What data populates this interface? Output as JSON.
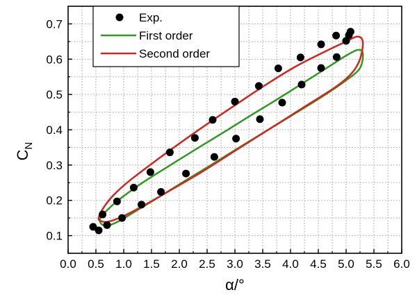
{
  "chart_data": {
    "type": "scatter",
    "title": "",
    "xlabel": "α/°",
    "ylabel_main": "C",
    "ylabel_sub": "N",
    "xlim": [
      0.0,
      6.0
    ],
    "ylim": [
      0.05,
      0.75
    ],
    "x_ticks": [
      "0.0",
      "0.5",
      "1.0",
      "1.5",
      "2.0",
      "2.5",
      "3.0",
      "3.5",
      "4.0",
      "4.5",
      "5.0",
      "5.5",
      "6.0"
    ],
    "y_ticks": [
      "0.1",
      "0.2",
      "0.3",
      "0.4",
      "0.5",
      "0.6",
      "0.7"
    ],
    "grid": true,
    "legend_position": "top-left",
    "series": [
      {
        "name": "Exp.",
        "kind": "points",
        "color": "#000000",
        "x": [
          0.45,
          0.55,
          0.62,
          0.7,
          0.88,
          0.97,
          1.18,
          1.32,
          1.48,
          1.67,
          1.83,
          2.12,
          2.28,
          2.6,
          2.63,
          3.0,
          3.02,
          3.43,
          3.45,
          3.78,
          3.85,
          4.18,
          4.2,
          4.55,
          4.55,
          4.82,
          4.83,
          5.0,
          5.05,
          5.08
        ],
        "y": [
          0.125,
          0.115,
          0.16,
          0.13,
          0.197,
          0.15,
          0.236,
          0.188,
          0.28,
          0.224,
          0.336,
          0.276,
          0.377,
          0.428,
          0.323,
          0.48,
          0.375,
          0.524,
          0.43,
          0.574,
          0.477,
          0.605,
          0.528,
          0.642,
          0.575,
          0.667,
          0.606,
          0.652,
          0.668,
          0.678
        ]
      },
      {
        "name": "First order",
        "kind": "loop",
        "color": "#2e9a1f",
        "x": [
          0.57,
          0.6,
          0.7,
          0.9,
          1.2,
          1.6,
          2.1,
          2.6,
          3.1,
          3.6,
          4.1,
          4.6,
          5.0,
          5.25,
          5.3,
          5.2,
          5.0,
          4.7,
          4.3,
          3.8,
          3.3,
          2.8,
          2.3,
          1.8,
          1.3,
          0.9,
          0.7,
          0.6,
          0.57
        ],
        "y": [
          0.145,
          0.133,
          0.128,
          0.14,
          0.168,
          0.206,
          0.255,
          0.303,
          0.352,
          0.4,
          0.448,
          0.497,
          0.54,
          0.575,
          0.618,
          0.626,
          0.61,
          0.58,
          0.54,
          0.49,
          0.442,
          0.393,
          0.345,
          0.296,
          0.246,
          0.2,
          0.172,
          0.155,
          0.145
        ]
      },
      {
        "name": "Second order",
        "kind": "loop",
        "color": "#d4241e",
        "x": [
          0.55,
          0.58,
          0.7,
          0.95,
          1.3,
          1.8,
          2.4,
          3.0,
          3.6,
          4.2,
          4.8,
          5.1,
          5.25,
          5.3,
          5.2,
          5.0,
          4.6,
          4.1,
          3.6,
          3.1,
          2.6,
          2.1,
          1.6,
          1.1,
          0.8,
          0.62,
          0.55
        ],
        "y": [
          0.15,
          0.142,
          0.139,
          0.152,
          0.18,
          0.225,
          0.28,
          0.34,
          0.4,
          0.46,
          0.52,
          0.56,
          0.6,
          0.65,
          0.664,
          0.65,
          0.62,
          0.58,
          0.532,
          0.48,
          0.427,
          0.372,
          0.315,
          0.255,
          0.212,
          0.175,
          0.15
        ]
      }
    ]
  }
}
